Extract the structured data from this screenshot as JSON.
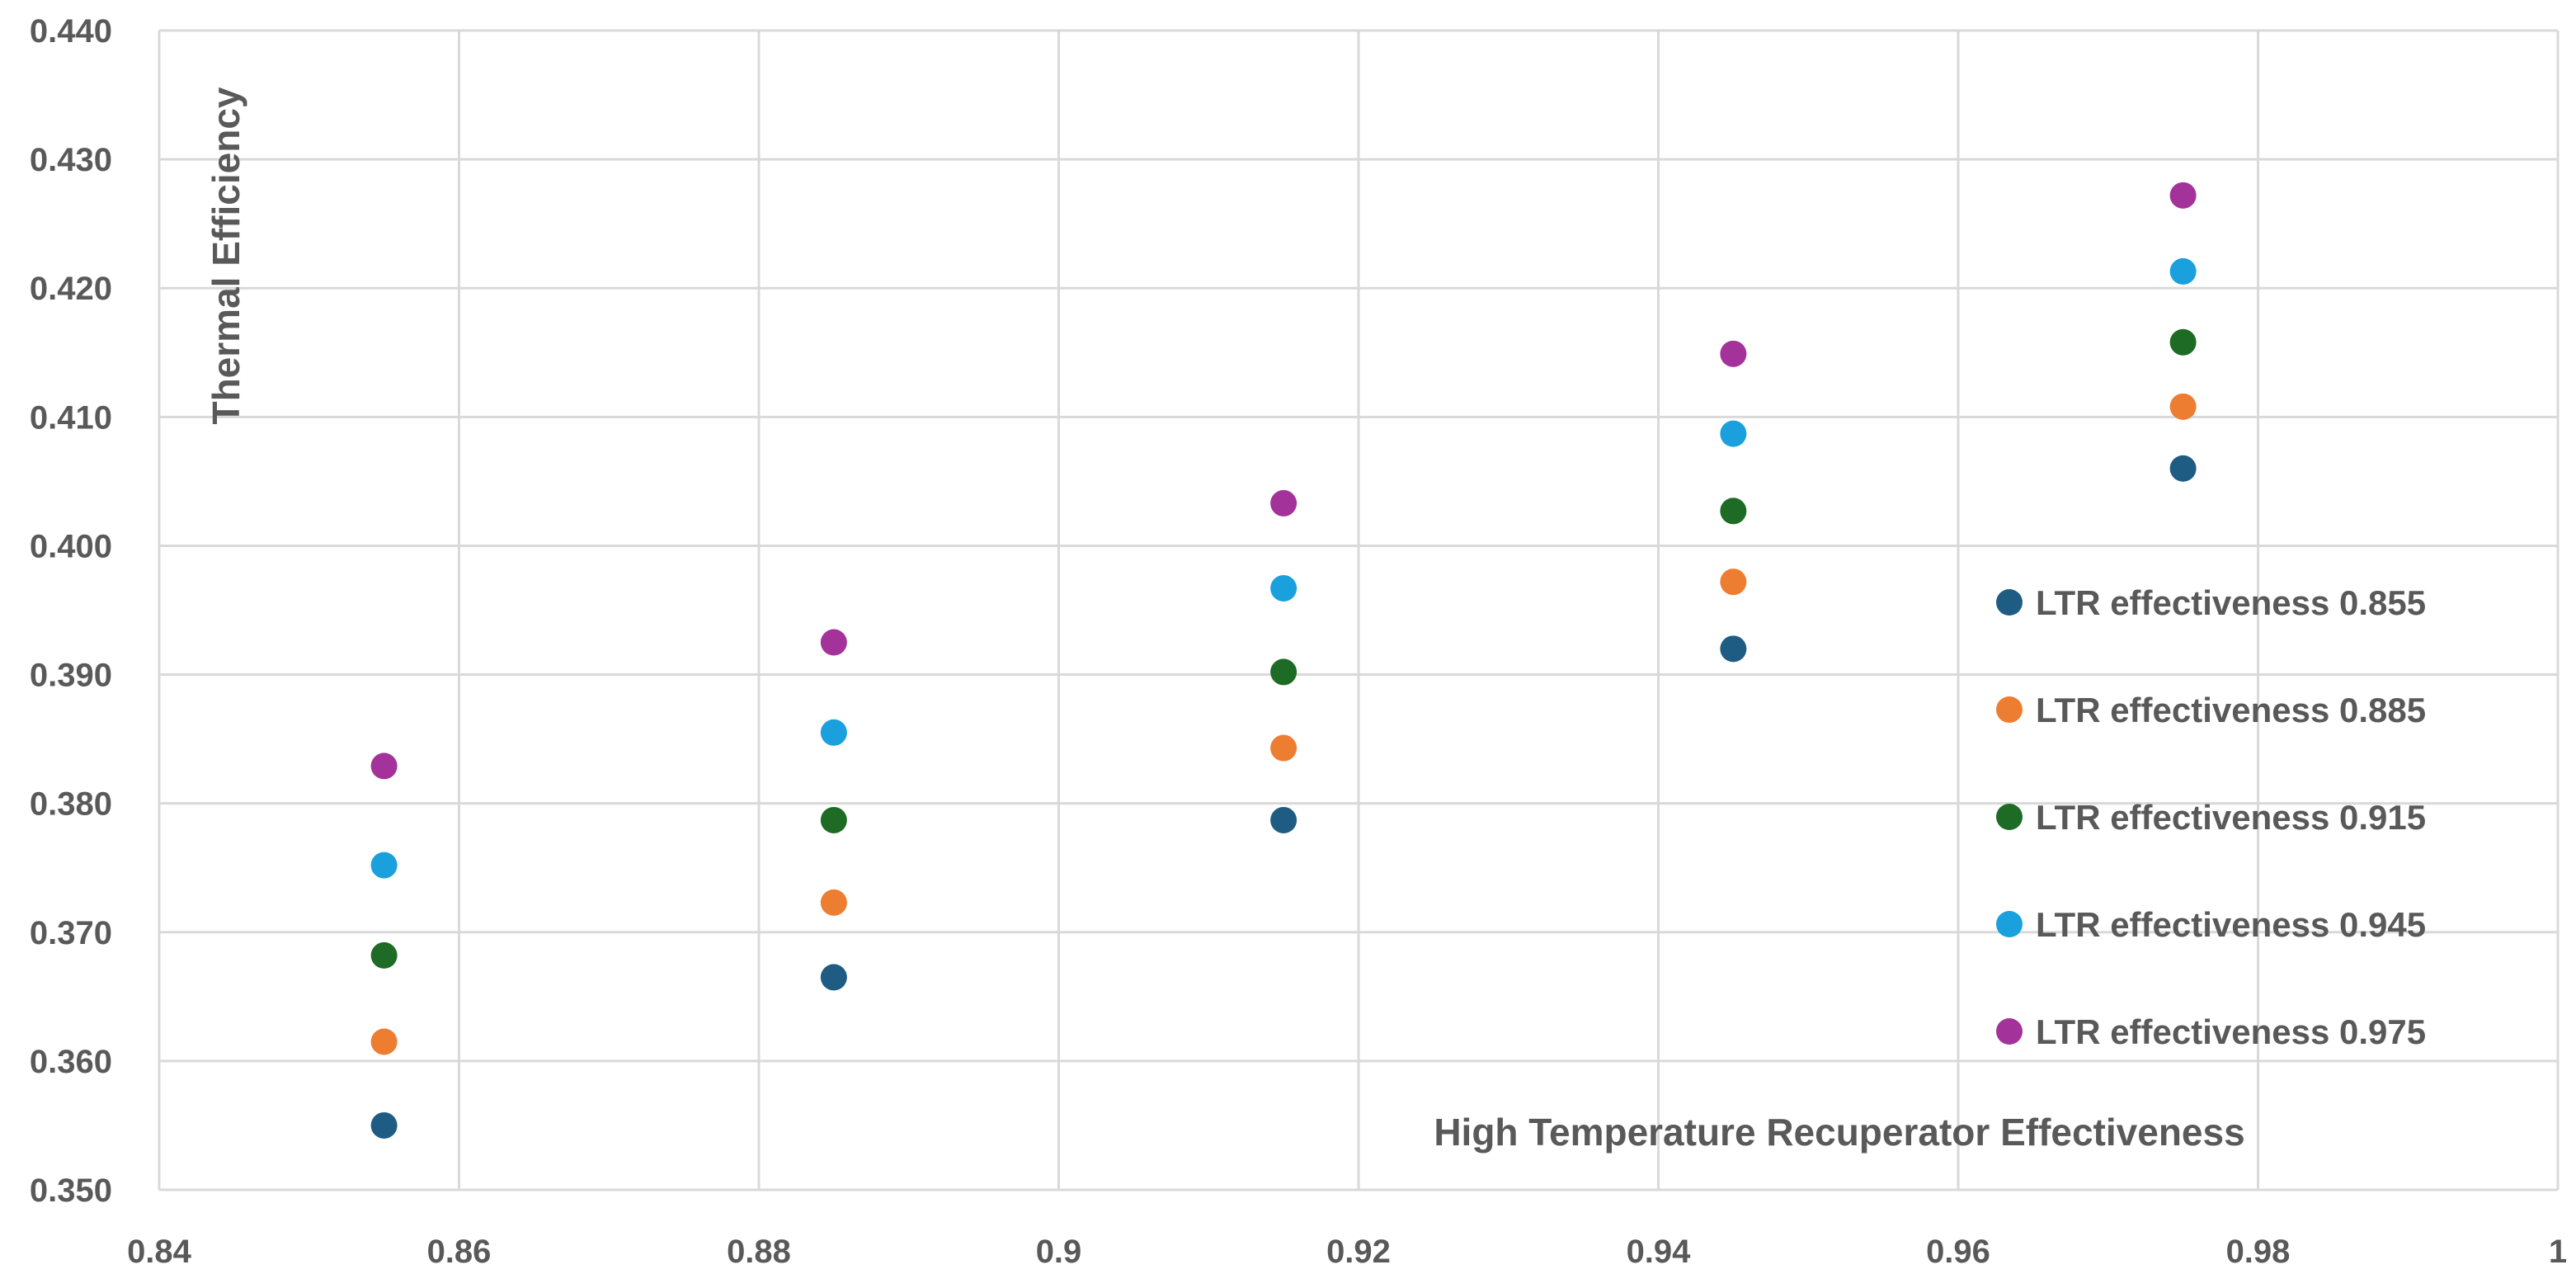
{
  "chart_data": {
    "type": "scatter",
    "title": "",
    "xlabel": "High Temperature Recuperator Effectiveness",
    "ylabel": "Thermal Efficiency",
    "xlim": [
      0.84,
      1.0
    ],
    "ylim": [
      0.35,
      0.44
    ],
    "x_ticks": [
      0.84,
      0.86,
      0.88,
      0.9,
      0.92,
      0.94,
      0.96,
      0.98,
      1.0
    ],
    "x_tick_labels": [
      "0.84",
      "0.86",
      "0.88",
      "0.9",
      "0.92",
      "0.94",
      "0.96",
      "0.98",
      "1"
    ],
    "y_ticks": [
      0.35,
      0.36,
      0.37,
      0.38,
      0.39,
      0.4,
      0.41,
      0.42,
      0.43,
      0.44
    ],
    "y_tick_labels": [
      "0.350",
      "0.360",
      "0.370",
      "0.380",
      "0.390",
      "0.400",
      "0.410",
      "0.420",
      "0.430",
      "0.440"
    ],
    "grid": true,
    "legend_position": "right",
    "x": [
      0.855,
      0.885,
      0.915,
      0.945,
      0.975
    ],
    "series": [
      {
        "name": "LTR effectiveness 0.855",
        "color": "#1f5c83",
        "values": [
          0.355,
          0.3665,
          0.3787,
          0.392,
          0.406
        ]
      },
      {
        "name": "LTR effectiveness 0.885",
        "color": "#ed7d31",
        "values": [
          0.3615,
          0.3723,
          0.3843,
          0.3972,
          0.4108
        ]
      },
      {
        "name": "LTR effectiveness 0.915",
        "color": "#1e6b25",
        "values": [
          0.3682,
          0.3787,
          0.3902,
          0.4027,
          0.4158
        ]
      },
      {
        "name": "LTR effectiveness 0.945",
        "color": "#1aa0dc",
        "values": [
          0.3752,
          0.3855,
          0.3967,
          0.4087,
          0.4213
        ]
      },
      {
        "name": "LTR effectiveness 0.975",
        "color": "#a4329b",
        "values": [
          0.3829,
          0.3925,
          0.4033,
          0.4149,
          0.4272
        ]
      }
    ]
  }
}
